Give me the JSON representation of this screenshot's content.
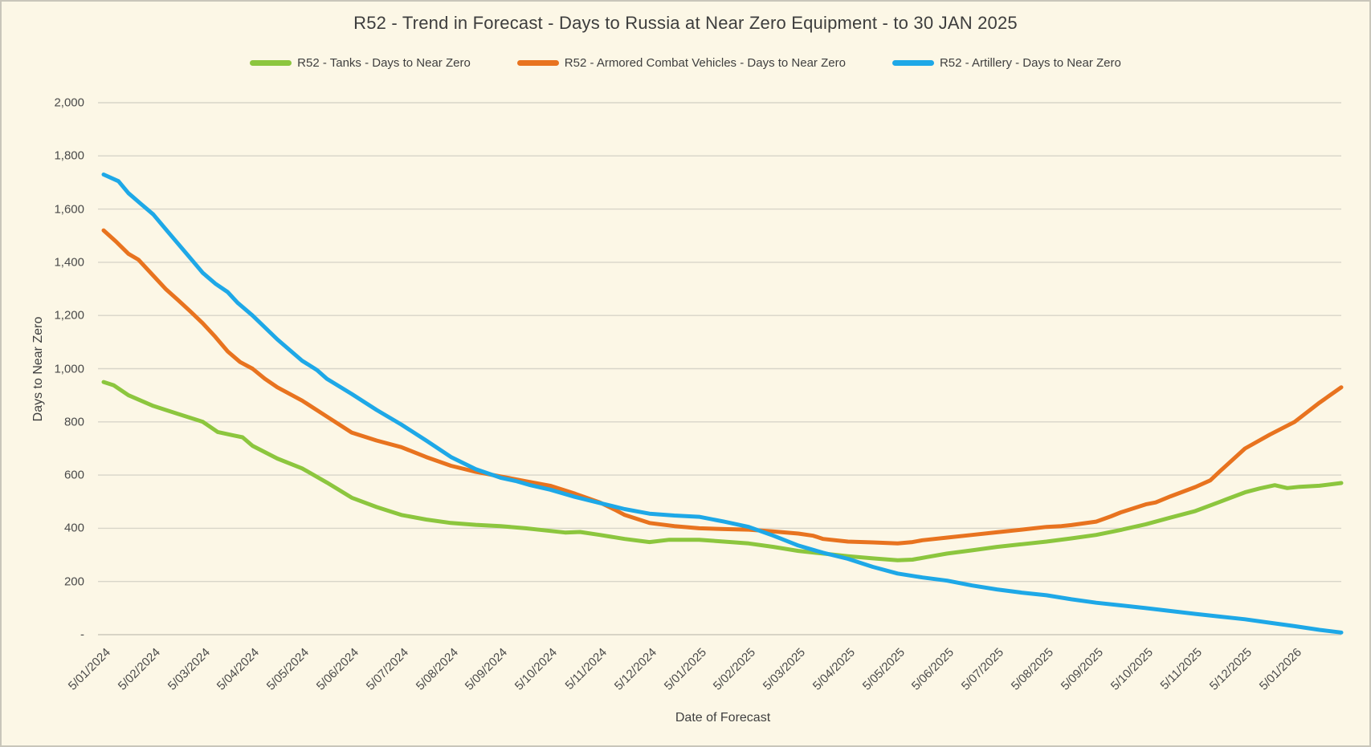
{
  "title": "R52 - Trend in Forecast - Days to Russia at Near Zero Equipment - to 30 JAN 2025",
  "colors": {
    "background": "#FCF7E6",
    "border": "#C9C6BA",
    "gridline": "#D8D5C9",
    "zero_line": "#CBC8BC",
    "text": "#3F3F3F",
    "tick_text": "#4A4A4A",
    "tanks_green": "#8CC63E",
    "acv_orange": "#E8731F",
    "artillery_blue": "#1EA8E7"
  },
  "chart_data": {
    "type": "line",
    "title": "R52 - Trend in Forecast - Days to Russia at Near Zero Equipment - to 30 JAN 2025",
    "xlabel": "Date of Forecast",
    "ylabel": "Days to Near Zero",
    "ylim": [
      0,
      2000
    ],
    "grid": "horizontal-only",
    "legend_position": "top",
    "y_tick_values": [
      0,
      200,
      400,
      600,
      800,
      1000,
      1200,
      1400,
      1600,
      1800,
      2000
    ],
    "y_tick_labels": [
      "-",
      "200",
      "400",
      "600",
      "800",
      "1,000",
      "1,200",
      "1,400",
      "1,600",
      "1,800",
      "2,000"
    ],
    "x_tick_labels": [
      "5/01/2024",
      "5/02/2024",
      "5/03/2024",
      "5/04/2024",
      "5/05/2024",
      "5/06/2024",
      "5/07/2024",
      "5/08/2024",
      "5/09/2024",
      "5/10/2024",
      "5/11/2024",
      "5/12/2024",
      "5/01/2025",
      "5/02/2025",
      "5/03/2025",
      "5/04/2025",
      "5/05/2025",
      "5/06/2025",
      "5/07/2025",
      "5/08/2025",
      "5/09/2025",
      "5/10/2025",
      "5/11/2025",
      "5/12/2025",
      "5/01/2026"
    ],
    "x_months_span": [
      0,
      24.94
    ],
    "series": [
      {
        "name": "R52 - Tanks - Days to Near Zero",
        "color": "#8CC63E",
        "points": [
          [
            0,
            950
          ],
          [
            0.2,
            938
          ],
          [
            0.5,
            900
          ],
          [
            1,
            860
          ],
          [
            1.5,
            830
          ],
          [
            2,
            800
          ],
          [
            2.3,
            762
          ],
          [
            2.6,
            750
          ],
          [
            2.8,
            742
          ],
          [
            3,
            710
          ],
          [
            3.5,
            662
          ],
          [
            4,
            625
          ],
          [
            4.5,
            572
          ],
          [
            5,
            515
          ],
          [
            5.5,
            480
          ],
          [
            6,
            450
          ],
          [
            6.5,
            433
          ],
          [
            7,
            420
          ],
          [
            7.5,
            413
          ],
          [
            8,
            408
          ],
          [
            8.5,
            400
          ],
          [
            9,
            390
          ],
          [
            9.3,
            384
          ],
          [
            9.6,
            386
          ],
          [
            10,
            375
          ],
          [
            10.5,
            360
          ],
          [
            11,
            348
          ],
          [
            11.4,
            357
          ],
          [
            12,
            357
          ],
          [
            12.5,
            350
          ],
          [
            13,
            343
          ],
          [
            13.5,
            330
          ],
          [
            14,
            315
          ],
          [
            14.5,
            305
          ],
          [
            15,
            295
          ],
          [
            15.5,
            287
          ],
          [
            16,
            280
          ],
          [
            16.3,
            282
          ],
          [
            16.6,
            292
          ],
          [
            17,
            305
          ],
          [
            17.5,
            317
          ],
          [
            18,
            330
          ],
          [
            18.5,
            340
          ],
          [
            19,
            350
          ],
          [
            19.5,
            362
          ],
          [
            20,
            375
          ],
          [
            20.5,
            394
          ],
          [
            21,
            415
          ],
          [
            21.5,
            440
          ],
          [
            22,
            465
          ],
          [
            22.5,
            500
          ],
          [
            23,
            535
          ],
          [
            23.3,
            550
          ],
          [
            23.6,
            562
          ],
          [
            23.85,
            551
          ],
          [
            24.1,
            556
          ],
          [
            24.5,
            560
          ],
          [
            24.94,
            570
          ]
        ]
      },
      {
        "name": "R52 - Armored Combat Vehicles - Days to Near Zero",
        "color": "#E8731F",
        "points": [
          [
            0,
            1520
          ],
          [
            0.25,
            1478
          ],
          [
            0.5,
            1432
          ],
          [
            0.7,
            1410
          ],
          [
            1,
            1350
          ],
          [
            1.25,
            1300
          ],
          [
            1.5,
            1258
          ],
          [
            1.75,
            1215
          ],
          [
            2,
            1170
          ],
          [
            2.25,
            1120
          ],
          [
            2.5,
            1065
          ],
          [
            2.75,
            1025
          ],
          [
            3,
            1000
          ],
          [
            3.25,
            962
          ],
          [
            3.5,
            930
          ],
          [
            4,
            880
          ],
          [
            4.5,
            820
          ],
          [
            5,
            760
          ],
          [
            5.5,
            730
          ],
          [
            6,
            705
          ],
          [
            6.5,
            668
          ],
          [
            7,
            635
          ],
          [
            7.5,
            612
          ],
          [
            8,
            595
          ],
          [
            8.5,
            577
          ],
          [
            9,
            560
          ],
          [
            9.5,
            530
          ],
          [
            10,
            497
          ],
          [
            10.3,
            470
          ],
          [
            10.5,
            450
          ],
          [
            11,
            420
          ],
          [
            11.5,
            408
          ],
          [
            12,
            400
          ],
          [
            12.5,
            397
          ],
          [
            13,
            395
          ],
          [
            13.5,
            388
          ],
          [
            14,
            380
          ],
          [
            14.3,
            372
          ],
          [
            14.5,
            360
          ],
          [
            15,
            350
          ],
          [
            15.5,
            347
          ],
          [
            16,
            343
          ],
          [
            16.3,
            348
          ],
          [
            16.5,
            355
          ],
          [
            17,
            365
          ],
          [
            17.5,
            375
          ],
          [
            18,
            385
          ],
          [
            18.5,
            395
          ],
          [
            19,
            405
          ],
          [
            19.3,
            408
          ],
          [
            19.5,
            412
          ],
          [
            20,
            425
          ],
          [
            20.3,
            445
          ],
          [
            20.5,
            460
          ],
          [
            21,
            490
          ],
          [
            21.2,
            497
          ],
          [
            21.5,
            520
          ],
          [
            22,
            555
          ],
          [
            22.3,
            580
          ],
          [
            22.5,
            615
          ],
          [
            23,
            700
          ],
          [
            23.5,
            752
          ],
          [
            24,
            800
          ],
          [
            24.5,
            872
          ],
          [
            24.94,
            930
          ]
        ]
      },
      {
        "name": "R52 - Artillery - Days to Near Zero",
        "color": "#1EA8E7",
        "points": [
          [
            0,
            1730
          ],
          [
            0.3,
            1705
          ],
          [
            0.5,
            1660
          ],
          [
            0.75,
            1620
          ],
          [
            1,
            1580
          ],
          [
            1.25,
            1525
          ],
          [
            1.5,
            1470
          ],
          [
            1.75,
            1415
          ],
          [
            2,
            1360
          ],
          [
            2.25,
            1320
          ],
          [
            2.5,
            1288
          ],
          [
            2.7,
            1248
          ],
          [
            3,
            1200
          ],
          [
            3.5,
            1110
          ],
          [
            4,
            1030
          ],
          [
            4.3,
            995
          ],
          [
            4.5,
            962
          ],
          [
            5,
            905
          ],
          [
            5.5,
            845
          ],
          [
            6,
            790
          ],
          [
            6.5,
            730
          ],
          [
            7,
            668
          ],
          [
            7.3,
            640
          ],
          [
            7.5,
            622
          ],
          [
            8,
            590
          ],
          [
            8.3,
            578
          ],
          [
            8.6,
            562
          ],
          [
            9,
            545
          ],
          [
            9.5,
            518
          ],
          [
            10,
            495
          ],
          [
            10.5,
            472
          ],
          [
            11,
            455
          ],
          [
            11.5,
            448
          ],
          [
            12,
            443
          ],
          [
            12.5,
            425
          ],
          [
            13,
            405
          ],
          [
            13.5,
            372
          ],
          [
            14,
            335
          ],
          [
            14.5,
            308
          ],
          [
            15,
            285
          ],
          [
            15.5,
            255
          ],
          [
            16,
            230
          ],
          [
            16.5,
            215
          ],
          [
            17,
            203
          ],
          [
            17.5,
            185
          ],
          [
            18,
            170
          ],
          [
            18.5,
            158
          ],
          [
            19,
            148
          ],
          [
            19.5,
            133
          ],
          [
            20,
            120
          ],
          [
            20.5,
            110
          ],
          [
            21,
            100
          ],
          [
            21.5,
            89
          ],
          [
            22,
            78
          ],
          [
            22.5,
            68
          ],
          [
            23,
            58
          ],
          [
            23.5,
            45
          ],
          [
            24,
            32
          ],
          [
            24.5,
            18
          ],
          [
            24.94,
            8
          ]
        ]
      }
    ]
  }
}
